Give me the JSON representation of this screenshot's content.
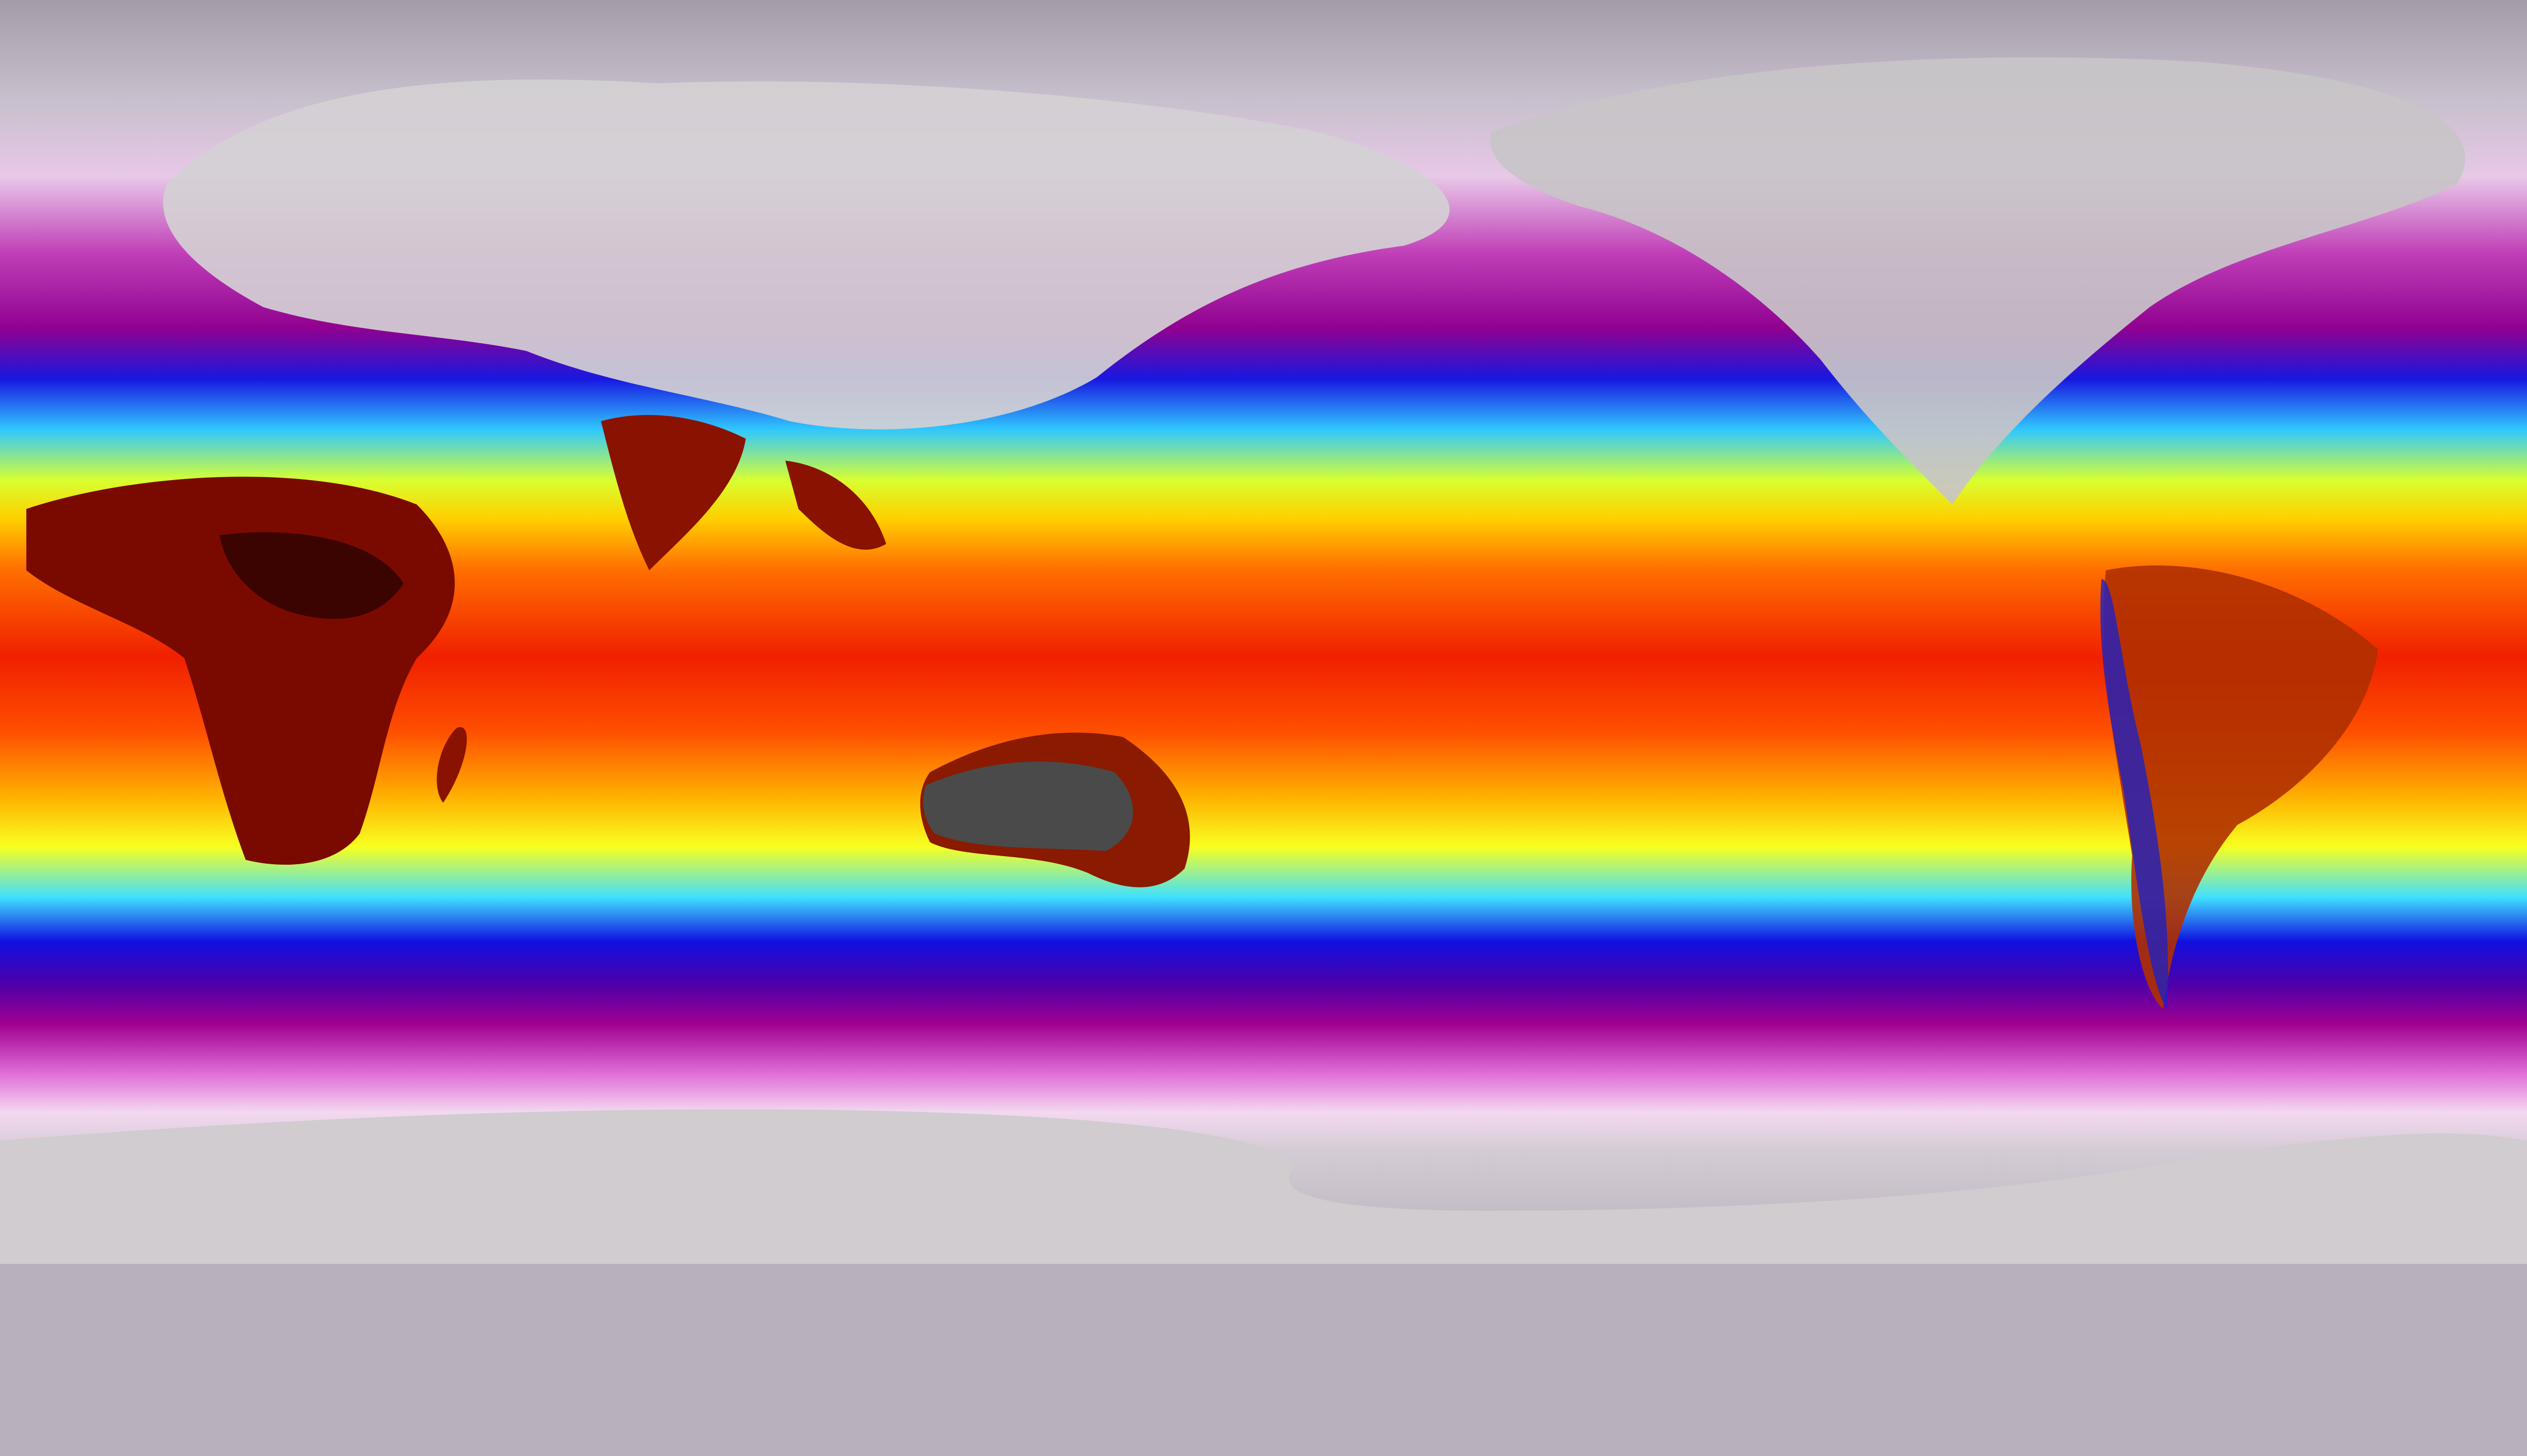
{
  "map": {
    "projection": "equirectangular",
    "colorscale": [
      "#9c94a0",
      "#f4eef4",
      "#e070d8",
      "#a0008c",
      "#1010e0",
      "#30c8ff",
      "#fff200",
      "#ff9000",
      "#e80000",
      "#600000",
      "#303030"
    ],
    "land_colors": {
      "polar_land": "#c8c4c8",
      "tropical_land": "#7a0a00",
      "australia_interior": "#4a4a4a",
      "antarctica": "#d0ccd0"
    }
  }
}
